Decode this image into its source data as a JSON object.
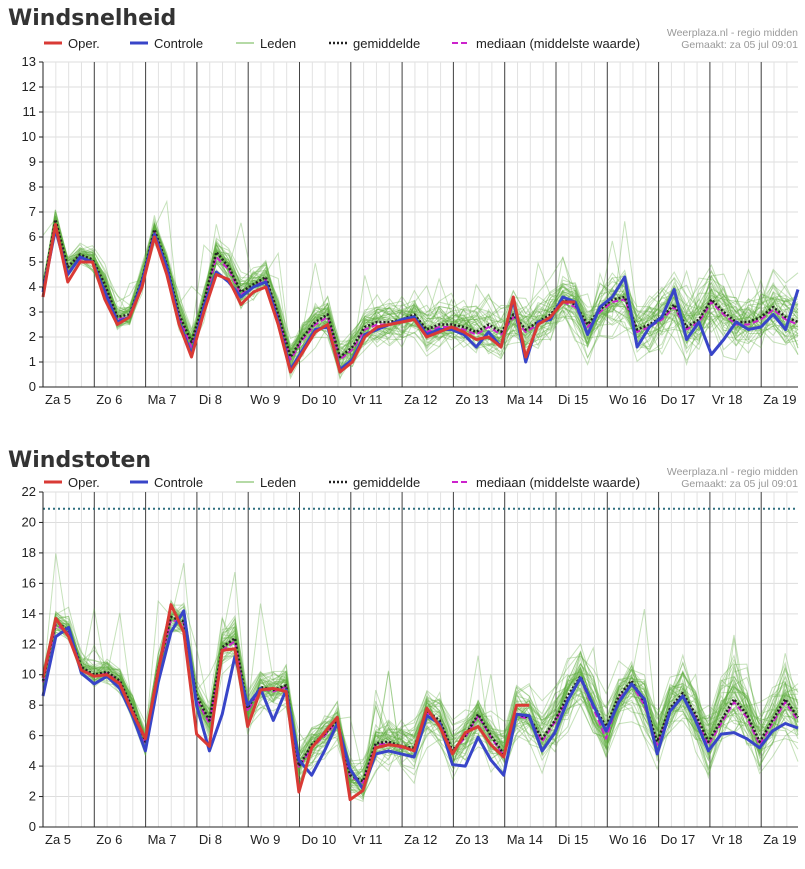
{
  "source_line1": "Weerplaza.nl - regio midden",
  "source_line2": "Gemaakt: za 05 jul 09:01",
  "legend": {
    "oper": "Oper.",
    "controle": "Controle",
    "leden": "Leden",
    "gemiddelde": "gemiddelde",
    "mediaan": "mediaan (middelste waarde)"
  },
  "colors": {
    "oper": "#d93a35",
    "controle": "#3845c8",
    "leden": "#5cad3b",
    "gemiddelde": "#222222",
    "mediaan": "#cc22cc",
    "threshold": "#2f6f7f"
  },
  "chart_data": [
    {
      "type": "line",
      "title": "Windsnelheid",
      "x_labels": [
        "Za 5",
        "Zo 6",
        "Ma 7",
        "Di 8",
        "Wo 9",
        "Do 10",
        "Vr 11",
        "Za 12",
        "Zo 13",
        "Ma 14",
        "Di 15",
        "Wo 16",
        "Do 17",
        "Vr 18",
        "Za 19"
      ],
      "ylim": [
        0,
        13
      ],
      "yticks": [
        0,
        1,
        2,
        3,
        4,
        5,
        6,
        7,
        8,
        9,
        10,
        11,
        12,
        13
      ],
      "grid": true,
      "legend_position": "top",
      "series": [
        {
          "name": "Oper.",
          "values": [
            3.6,
            6.5,
            4.2,
            5.0,
            5.0,
            3.5,
            2.5,
            2.8,
            4.0,
            6.0,
            4.5,
            2.5,
            1.2,
            3.0,
            4.5,
            4.3,
            3.3,
            3.8,
            4.0,
            2.5,
            0.6,
            1.4,
            2.2,
            2.5,
            0.6,
            1.0,
            2.0,
            2.4,
            2.5,
            2.6,
            2.7,
            2.0,
            2.2,
            2.4,
            2.2,
            1.9,
            2.0,
            1.6,
            3.6,
            1.2,
            2.5,
            2.8,
            3.4,
            3.4
          ]
        },
        {
          "name": "Controle",
          "values": [
            3.8,
            6.3,
            4.5,
            5.2,
            5.0,
            3.8,
            2.6,
            2.8,
            4.2,
            6.1,
            4.8,
            2.6,
            1.3,
            3.2,
            4.6,
            4.2,
            3.6,
            4.0,
            4.2,
            2.6,
            0.7,
            1.5,
            2.3,
            2.4,
            0.7,
            1.1,
            2.1,
            2.3,
            2.5,
            2.7,
            2.8,
            2.1,
            2.3,
            2.3,
            2.1,
            1.6,
            2.2,
            1.6,
            3.5,
            1.0,
            2.6,
            2.7,
            3.6,
            3.4,
            2.1,
            3.2,
            3.6,
            4.4,
            1.6,
            2.4,
            2.8,
            3.9,
            1.9,
            2.6,
            1.3,
            1.9,
            2.6,
            2.3,
            2.4,
            2.9,
            2.3,
            3.9
          ]
        },
        {
          "name": "gemiddelde",
          "values": [
            3.9,
            6.7,
            4.8,
            5.3,
            5.1,
            4.1,
            2.8,
            2.9,
            4.3,
            6.3,
            4.9,
            2.9,
            1.8,
            3.4,
            5.4,
            4.8,
            3.8,
            4.1,
            4.4,
            2.9,
            1.2,
            2.0,
            2.6,
            2.9,
            1.2,
            1.6,
            2.4,
            2.6,
            2.6,
            2.7,
            2.9,
            2.3,
            2.5,
            2.5,
            2.4,
            2.2,
            2.5,
            2.2,
            2.9,
            2.3,
            2.6,
            2.9,
            3.5,
            3.3,
            2.5,
            3.1,
            3.5,
            3.6,
            2.3,
            2.5,
            2.8,
            3.3,
            2.4,
            2.7,
            3.5,
            3.0,
            2.6,
            2.6,
            2.8,
            3.2,
            2.8,
            2.6
          ]
        },
        {
          "name": "mediaan (middelste waarde)",
          "values": [
            3.8,
            6.4,
            4.6,
            5.1,
            5.0,
            3.9,
            2.7,
            2.8,
            4.2,
            6.2,
            4.8,
            2.8,
            1.6,
            3.3,
            5.2,
            4.7,
            3.7,
            4.0,
            4.3,
            2.8,
            1.1,
            1.9,
            2.5,
            2.8,
            1.1,
            1.5,
            2.3,
            2.5,
            2.5,
            2.6,
            2.8,
            2.2,
            2.4,
            2.4,
            2.3,
            2.1,
            2.4,
            2.1,
            2.8,
            2.2,
            2.5,
            2.8,
            3.4,
            3.2,
            2.4,
            3.0,
            3.4,
            3.5,
            2.2,
            2.4,
            2.7,
            3.2,
            2.3,
            2.6,
            3.4,
            2.9,
            2.5,
            2.5,
            2.7,
            3.1,
            2.7,
            2.5
          ]
        }
      ]
    },
    {
      "type": "line",
      "title": "Windstoten",
      "x_labels": [
        "Za 5",
        "Zo 6",
        "Ma 7",
        "Di 8",
        "Wo 9",
        "Do 10",
        "Vr 11",
        "Za 12",
        "Zo 13",
        "Ma 14",
        "Di 15",
        "Wo 16",
        "Do 17",
        "Vr 18",
        "Za 19"
      ],
      "ylim": [
        0,
        22
      ],
      "yticks": [
        0,
        2,
        4,
        6,
        8,
        10,
        12,
        14,
        16,
        18,
        20,
        22
      ],
      "threshold_line": 20.9,
      "grid": true,
      "legend_position": "top",
      "series": [
        {
          "name": "Oper.",
          "values": [
            9.8,
            13.7,
            12.5,
            10.3,
            9.9,
            10.0,
            9.4,
            7.5,
            5.8,
            10.2,
            14.6,
            12.8,
            6.1,
            5.3,
            11.6,
            11.7,
            6.6,
            9.0,
            9.1,
            8.9,
            2.3,
            5.2,
            6.2,
            7.2,
            1.8,
            2.4,
            5.2,
            5.4,
            5.3,
            5.0,
            7.8,
            6.6,
            4.8,
            6.2,
            6.6,
            5.4,
            4.6,
            8.0,
            8.0
          ]
        },
        {
          "name": "Controle",
          "values": [
            8.6,
            12.5,
            13.1,
            10.1,
            9.4,
            9.9,
            9.1,
            7.3,
            5.0,
            9.5,
            12.8,
            14.2,
            8.0,
            5.0,
            7.4,
            11.2,
            8.0,
            9.1,
            7.0,
            9.0,
            4.4,
            3.4,
            5.0,
            6.8,
            3.8,
            2.5,
            4.8,
            5.0,
            4.8,
            4.6,
            7.3,
            6.8,
            4.1,
            4.0,
            5.9,
            4.4,
            3.4,
            7.4,
            7.3,
            5.0,
            6.2,
            8.3,
            9.8,
            8.0,
            6.3,
            8.2,
            9.4,
            8.4,
            4.8,
            7.6,
            8.6,
            7.0,
            5.0,
            6.1,
            6.2,
            5.8,
            5.2,
            6.3,
            6.8,
            6.5
          ]
        },
        {
          "name": "gemiddelde",
          "values": [
            9.6,
            13.5,
            12.9,
            10.5,
            10.0,
            10.2,
            9.6,
            7.8,
            5.6,
            10.4,
            13.8,
            13.5,
            8.6,
            7.0,
            11.8,
            12.4,
            7.8,
            9.2,
            9.0,
            9.3,
            4.0,
            5.4,
            6.1,
            7.0,
            3.4,
            3.0,
            5.5,
            5.6,
            5.3,
            5.2,
            7.6,
            7.0,
            5.0,
            6.0,
            7.4,
            6.0,
            4.8,
            7.4,
            7.2,
            5.8,
            7.0,
            8.6,
            9.9,
            8.0,
            6.6,
            8.6,
            9.6,
            8.2,
            5.6,
            7.8,
            8.8,
            7.4,
            5.6,
            7.0,
            8.4,
            7.4,
            5.6,
            7.0,
            8.4,
            7.2
          ]
        },
        {
          "name": "mediaan (middelste waarde)",
          "values": [
            9.5,
            13.3,
            12.7,
            10.4,
            9.9,
            10.1,
            9.5,
            7.7,
            5.5,
            10.2,
            13.6,
            13.4,
            8.4,
            6.8,
            11.6,
            12.2,
            7.6,
            9.1,
            8.9,
            9.2,
            3.9,
            5.2,
            6.0,
            6.9,
            3.3,
            2.9,
            5.4,
            5.5,
            5.2,
            5.1,
            7.5,
            6.9,
            4.9,
            5.9,
            7.3,
            5.9,
            4.7,
            7.3,
            7.1,
            5.6,
            6.9,
            8.4,
            9.7,
            7.8,
            5.8,
            8.4,
            9.4,
            8.0,
            5.4,
            7.6,
            8.6,
            7.2,
            5.4,
            6.8,
            8.2,
            7.2,
            5.4,
            6.8,
            8.2,
            7.0
          ]
        }
      ]
    }
  ]
}
